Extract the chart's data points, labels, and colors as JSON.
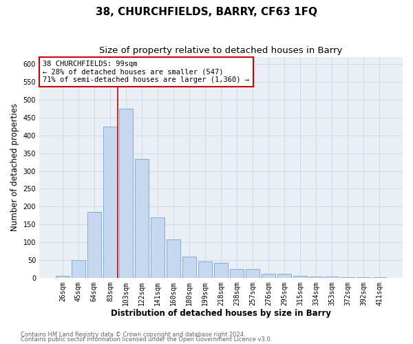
{
  "title": "38, CHURCHFIELDS, BARRY, CF63 1FQ",
  "subtitle": "Size of property relative to detached houses in Barry",
  "xlabel": "Distribution of detached houses by size in Barry",
  "ylabel": "Number of detached properties",
  "categories": [
    "26sqm",
    "45sqm",
    "64sqm",
    "83sqm",
    "103sqm",
    "122sqm",
    "141sqm",
    "160sqm",
    "180sqm",
    "199sqm",
    "218sqm",
    "238sqm",
    "257sqm",
    "276sqm",
    "295sqm",
    "315sqm",
    "334sqm",
    "353sqm",
    "372sqm",
    "392sqm",
    "411sqm"
  ],
  "values": [
    5,
    50,
    185,
    425,
    475,
    335,
    170,
    107,
    60,
    46,
    42,
    24,
    24,
    11,
    12,
    6,
    4,
    4,
    2,
    2,
    2
  ],
  "bar_color": "#c5d8f0",
  "bar_edge_color": "#7bafd4",
  "grid_color": "#cdd8e8",
  "background_color": "#eaeff5",
  "annotation_line1": "38 CHURCHFIELDS: 99sqm",
  "annotation_line2": "← 28% of detached houses are smaller (547)",
  "annotation_line3": "71% of semi-detached houses are larger (1,360) →",
  "annotation_box_color": "#cc0000",
  "property_line_x": 3.5,
  "ylim_max": 620,
  "yticks": [
    0,
    50,
    100,
    150,
    200,
    250,
    300,
    350,
    400,
    450,
    500,
    550,
    600
  ],
  "footnote1": "Contains HM Land Registry data © Crown copyright and database right 2024.",
  "footnote2": "Contains public sector information licensed under the Open Government Licence v3.0.",
  "footnote_color": "#666666",
  "title_fontsize": 11,
  "subtitle_fontsize": 9.5,
  "annot_fontsize": 7.5,
  "tick_fontsize": 7,
  "label_fontsize": 8.5,
  "footnote_fontsize": 6
}
